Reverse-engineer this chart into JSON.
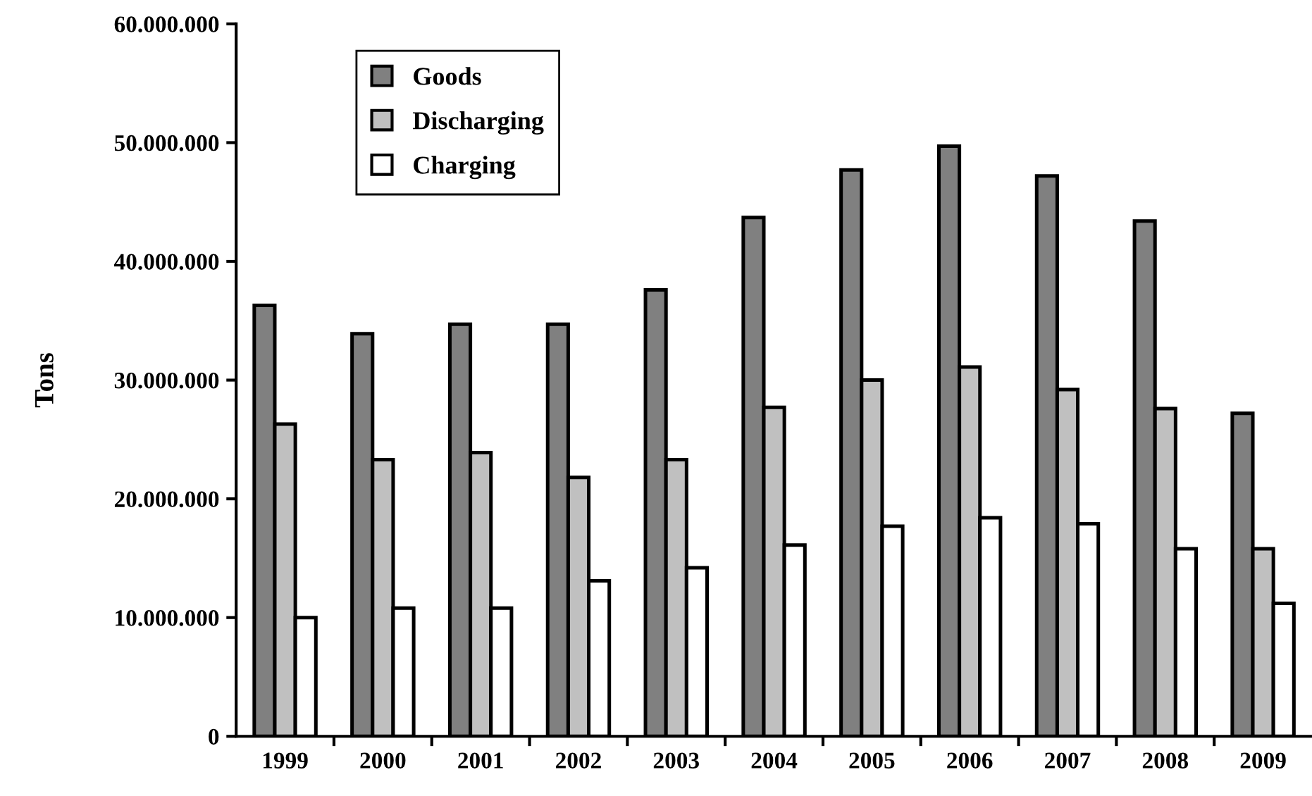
{
  "chart_data": {
    "type": "bar",
    "ylabel": "Tons",
    "categories": [
      "1999",
      "2000",
      "2001",
      "2002",
      "2003",
      "2004",
      "2005",
      "2006",
      "2007",
      "2008",
      "2009"
    ],
    "series": [
      {
        "name": "Goods",
        "color": "#808080",
        "values": [
          36300000,
          33900000,
          34700000,
          34700000,
          37600000,
          43700000,
          47700000,
          49700000,
          47200000,
          43400000,
          27200000
        ]
      },
      {
        "name": "Discharging",
        "color": "#c0c0c0",
        "values": [
          26300000,
          23300000,
          23900000,
          21800000,
          23300000,
          27700000,
          30000000,
          31100000,
          29200000,
          27600000,
          15800000
        ]
      },
      {
        "name": "Charging",
        "color": "#ffffff",
        "values": [
          10000000,
          10800000,
          10800000,
          13100000,
          14200000,
          16100000,
          17700000,
          18400000,
          17900000,
          15800000,
          11200000
        ]
      }
    ],
    "ylim": [
      0,
      60000000
    ],
    "yticks": [
      {
        "value": 0,
        "label": "0"
      },
      {
        "value": 10000000,
        "label": "10.000.000"
      },
      {
        "value": 20000000,
        "label": "20.000.000"
      },
      {
        "value": 30000000,
        "label": "30.000.000"
      },
      {
        "value": 40000000,
        "label": "40.000.000"
      },
      {
        "value": 50000000,
        "label": "50.000.000"
      },
      {
        "value": 60000000,
        "label": "60.000.000"
      }
    ],
    "legend": "top left",
    "grid": false
  }
}
